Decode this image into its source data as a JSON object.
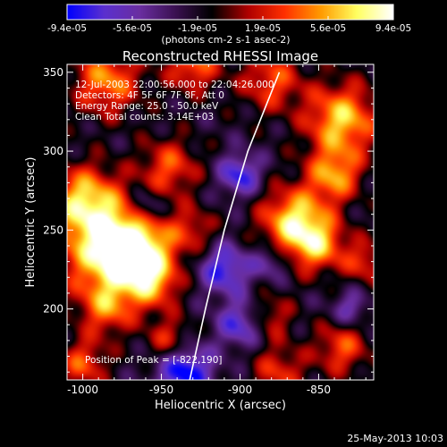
{
  "chart_data": {
    "type": "heatmap",
    "title": "Reconstructed RHESSI Image",
    "xlabel": "Heliocentric X (arcsec)",
    "ylabel": "Heliocentric Y (arcsec)",
    "xlim": [
      -1010,
      -815
    ],
    "ylim": [
      155,
      355
    ],
    "xticks": [
      -1000,
      -950,
      -900,
      -850
    ],
    "yticks": [
      200,
      250,
      300,
      350
    ],
    "colorbar": {
      "min": -9.4e-05,
      "max": 9.4e-05,
      "tick_labels": [
        "-9.4e-05",
        "-5.6e-05",
        "-1.9e-05",
        "1.9e-05",
        "5.6e-05",
        "9.4e-05"
      ],
      "unit_label": "(photons cm-2 s-1 asec-2)",
      "colors": [
        "#0000ff",
        "#5a2fd0",
        "#6a2ea0",
        "#3a1050",
        "#000000",
        "#b00000",
        "#ff3000",
        "#ff9a00",
        "#ffff60",
        "#ffffff"
      ]
    },
    "annotations": [
      "12-Jul-2003 22:00:56.000 to 22:04:26.000",
      "Detectors: 4F 5F 6F 7F 8F, Att 0",
      "Energy Range: 25.0 - 50.0 keV",
      "Clean    Total counts: 3.14E+03"
    ],
    "peak_label": "Position of Peak = [-822,190]",
    "peak": [
      -822,
      190
    ],
    "limb_curve": [
      [
        -932,
        155
      ],
      [
        -922,
        200
      ],
      [
        -910,
        250
      ],
      [
        -895,
        300
      ],
      [
        -875,
        350
      ]
    ],
    "sources": [
      {
        "x": -985,
        "y": 240,
        "s": 22,
        "a": 1.2
      },
      {
        "x": -965,
        "y": 235,
        "s": 16,
        "a": 1.1
      },
      {
        "x": -1000,
        "y": 270,
        "s": 15,
        "a": 0.9
      },
      {
        "x": -945,
        "y": 290,
        "s": 13,
        "a": 0.7
      },
      {
        "x": -985,
        "y": 345,
        "s": 15,
        "a": 0.9
      },
      {
        "x": -930,
        "y": 355,
        "s": 12,
        "a": 0.8
      },
      {
        "x": -880,
        "y": 345,
        "s": 14,
        "a": 0.7
      },
      {
        "x": -835,
        "y": 320,
        "s": 16,
        "a": 1.1
      },
      {
        "x": -840,
        "y": 285,
        "s": 12,
        "a": 0.9
      },
      {
        "x": -865,
        "y": 255,
        "s": 15,
        "a": 1.2
      },
      {
        "x": -850,
        "y": 240,
        "s": 12,
        "a": 0.8
      },
      {
        "x": -820,
        "y": 230,
        "s": 10,
        "a": 0.6
      },
      {
        "x": -955,
        "y": 215,
        "s": 11,
        "a": 0.6
      },
      {
        "x": -985,
        "y": 200,
        "s": 12,
        "a": 0.7
      },
      {
        "x": -945,
        "y": 180,
        "s": 10,
        "a": 0.6
      },
      {
        "x": -1000,
        "y": 165,
        "s": 11,
        "a": 0.7
      },
      {
        "x": -930,
        "y": 250,
        "s": 10,
        "a": 0.5
      },
      {
        "x": -880,
        "y": 195,
        "s": 10,
        "a": 0.5
      },
      {
        "x": -875,
        "y": 160,
        "s": 12,
        "a": 0.6
      },
      {
        "x": -835,
        "y": 175,
        "s": 12,
        "a": 0.7
      },
      {
        "x": -900,
        "y": 285,
        "s": 9,
        "a": -0.8
      },
      {
        "x": -910,
        "y": 225,
        "s": 11,
        "a": -0.8
      },
      {
        "x": -900,
        "y": 190,
        "s": 10,
        "a": -0.7
      },
      {
        "x": -935,
        "y": 160,
        "s": 12,
        "a": -1.0
      },
      {
        "x": -960,
        "y": 265,
        "s": 8,
        "a": -0.6
      },
      {
        "x": -830,
        "y": 200,
        "s": 8,
        "a": -0.5
      },
      {
        "x": -880,
        "y": 230,
        "s": 8,
        "a": -0.5
      }
    ]
  },
  "footer": {
    "timestamp": "25-May-2013 10:03"
  }
}
